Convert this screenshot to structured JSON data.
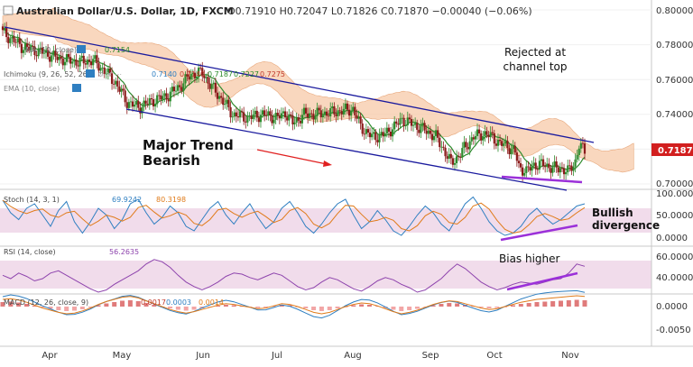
{
  "header": {
    "title": "Australian Dollar/U.S. Dollar, 1D, FXCM",
    "ohlc": "O0.71910 H0.72047 L0.71826 C0.71870 −0.00040 (−0.06%)"
  },
  "legends": {
    "ma_label": "MA (10, close)",
    "ma_value": "0.7154",
    "ichimoku_label": "Ichimoku (9, 26, 52, 26)",
    "ichimoku_values": [
      "0.7140",
      "0.7140",
      "0.7187",
      "0.7227",
      "0.7275"
    ],
    "ema_label": "EMA (10, close)",
    "stoch_label": "Stoch (14, 3, 1)",
    "stoch_values": [
      "69.9242",
      "80.3198"
    ],
    "rsi_label": "RSI (14, close)",
    "rsi_value": "56.2635",
    "macd_label": "MACD (12, 26, close, 9)",
    "macd_values": [
      "0.0017",
      "0.0003",
      "0.0014"
    ]
  },
  "annotations": {
    "rejected": [
      "Rejected at",
      "channel top"
    ],
    "trend": [
      "Major Trend",
      "Bearish"
    ],
    "bullish": [
      "Bullish",
      "divergence"
    ],
    "bias": "Bias higher"
  },
  "price_axis": {
    "ticks": [
      "0.80000",
      "0.78000",
      "0.76000",
      "0.74000",
      "0.72000",
      "0.70000"
    ],
    "last_price": "0.71870"
  },
  "stoch_axis": [
    "100.0000",
    "50.0000",
    "0.0000"
  ],
  "rsi_axis": [
    "60.0000",
    "40.0000"
  ],
  "macd_axis": [
    "0.0000",
    "-0.0050"
  ],
  "months": [
    "Apr",
    "May",
    "Jun",
    "Jul",
    "Aug",
    "Sep",
    "Oct",
    "Nov"
  ],
  "colors": {
    "bull": "#2e8b2e",
    "bear": "#8b1a1a",
    "cloud": "#f7c9a8",
    "channel": "#1010aa",
    "divergence": "#9b30d9",
    "price_tag": "#d21f1f"
  },
  "chart_data": {
    "type": "candlestick",
    "title": "Australian Dollar/U.S. Dollar, 1D, FXCM",
    "ylim": [
      0.697,
      0.802
    ],
    "close_anchors": [
      [
        0,
        0.787
      ],
      [
        10,
        0.779
      ],
      [
        20,
        0.776
      ],
      [
        30,
        0.772
      ],
      [
        40,
        0.77
      ],
      [
        48,
        0.771
      ],
      [
        55,
        0.764
      ],
      [
        60,
        0.758
      ],
      [
        66,
        0.747
      ],
      [
        72,
        0.744
      ],
      [
        80,
        0.748
      ],
      [
        88,
        0.751
      ],
      [
        95,
        0.757
      ],
      [
        100,
        0.763
      ],
      [
        106,
        0.764
      ],
      [
        110,
        0.757
      ],
      [
        116,
        0.749
      ],
      [
        122,
        0.74
      ],
      [
        130,
        0.738
      ],
      [
        138,
        0.74
      ],
      [
        146,
        0.738
      ],
      [
        150,
        0.741
      ],
      [
        154,
        0.735
      ],
      [
        160,
        0.74
      ],
      [
        166,
        0.74
      ],
      [
        174,
        0.741
      ],
      [
        180,
        0.742
      ],
      [
        186,
        0.743
      ],
      [
        190,
        0.733
      ],
      [
        196,
        0.727
      ],
      [
        202,
        0.728
      ],
      [
        208,
        0.733
      ],
      [
        212,
        0.737
      ],
      [
        218,
        0.734
      ],
      [
        224,
        0.731
      ],
      [
        230,
        0.727
      ],
      [
        234,
        0.72
      ],
      [
        238,
        0.712
      ],
      [
        242,
        0.716
      ],
      [
        246,
        0.722
      ],
      [
        250,
        0.727
      ],
      [
        255,
        0.729
      ],
      [
        260,
        0.727
      ],
      [
        264,
        0.723
      ],
      [
        268,
        0.722
      ],
      [
        272,
        0.718
      ],
      [
        274,
        0.71
      ],
      [
        278,
        0.707
      ],
      [
        282,
        0.711
      ],
      [
        288,
        0.711
      ],
      [
        292,
        0.709
      ],
      [
        296,
        0.709
      ],
      [
        300,
        0.707
      ],
      [
        304,
        0.713
      ],
      [
        306,
        0.722
      ],
      [
        309,
        0.719
      ]
    ],
    "stoch": [
      88,
      60,
      45,
      70,
      80,
      55,
      30,
      65,
      85,
      40,
      15,
      40,
      70,
      55,
      25,
      45,
      80,
      90,
      60,
      35,
      50,
      75,
      60,
      30,
      20,
      45,
      70,
      85,
      55,
      35,
      60,
      80,
      50,
      25,
      40,
      70,
      85,
      60,
      30,
      15,
      35,
      60,
      80,
      90,
      55,
      25,
      40,
      65,
      45,
      20,
      10,
      30,
      55,
      75,
      60,
      35,
      20,
      50,
      80,
      95,
      70,
      40,
      20,
      10,
      15,
      30,
      55,
      70,
      50,
      35,
      45,
      60,
      75,
      80
    ],
    "rsi": [
      48,
      45,
      50,
      47,
      43,
      45,
      50,
      52,
      48,
      44,
      40,
      36,
      33,
      35,
      40,
      44,
      48,
      52,
      58,
      62,
      60,
      55,
      48,
      42,
      38,
      35,
      38,
      42,
      47,
      50,
      49,
      46,
      44,
      47,
      50,
      48,
      43,
      38,
      35,
      37,
      42,
      46,
      44,
      40,
      36,
      34,
      38,
      43,
      46,
      44,
      40,
      37,
      33,
      35,
      40,
      45,
      52,
      58,
      54,
      48,
      42,
      38,
      35,
      37,
      40,
      42,
      41,
      40,
      42,
      44,
      45,
      50,
      58,
      56
    ],
    "macd_hist": [
      0.001,
      0.0011,
      0.0009,
      0.0006,
      0.0002,
      -0.0002,
      -0.0005,
      -0.0008,
      -0.001,
      -0.0009,
      -0.0006,
      -0.0002,
      0.0003,
      0.0007,
      0.001,
      0.0013,
      0.0014,
      0.0012,
      0.0008,
      0.0004,
      0.0,
      -0.0004,
      -0.0007,
      -0.0009,
      -0.0007,
      -0.0004,
      -0.0001,
      0.0002,
      0.0004,
      0.0003,
      0.0001,
      -0.0001,
      -0.0003,
      -0.0002,
      0.0001,
      0.0004,
      0.0003,
      0.0,
      -0.0004,
      -0.0008,
      -0.001,
      -0.0008,
      -0.0004,
      0.0,
      0.0003,
      0.0005,
      0.0004,
      0.0001,
      -0.0003,
      -0.0007,
      -0.001,
      -0.0008,
      -0.0005,
      -0.0001,
      0.0003,
      0.0006,
      0.0008,
      0.0007,
      0.0004,
      0.0001,
      -0.0002,
      -0.0004,
      -0.0003,
      0.0,
      0.0003,
      0.0006,
      0.0008,
      0.001,
      0.0011,
      0.0012,
      0.0013,
      0.0014,
      0.0015,
      0.0014
    ]
  }
}
